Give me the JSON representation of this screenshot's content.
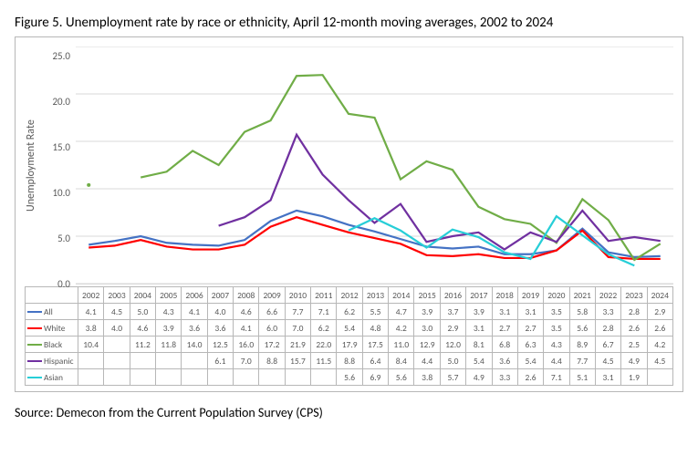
{
  "title": "Figure 5. Unemployment rate by race or ethnicity, April 12-month moving averages, 2002 to 2024",
  "source": "Source: Demecon from the Current Population Survey (CPS)",
  "chart": {
    "type": "line",
    "ylabel": "Unemployment Rate",
    "ylim": [
      0,
      25
    ],
    "yticks": [
      0.0,
      5.0,
      10.0,
      15.0,
      20.0,
      25.0
    ],
    "ytick_labels": [
      "0.0",
      "5.0",
      "10.0",
      "15.0",
      "20.0",
      "25.0"
    ],
    "years": [
      "2002",
      "2003",
      "2004",
      "2005",
      "2006",
      "2007",
      "2008",
      "2009",
      "2010",
      "2011",
      "2012",
      "2013",
      "2014",
      "2015",
      "2016",
      "2017",
      "2018",
      "2019",
      "2020",
      "2021",
      "2022",
      "2023",
      "2024"
    ],
    "grid_color": "#d9d9d9",
    "border_color": "#b7b7b7",
    "background_color": "#ffffff",
    "axis_text_color": "#595959",
    "line_width": 2.2,
    "series": [
      {
        "name": "All",
        "color": "#4472c4",
        "data": [
          4.1,
          4.5,
          5.0,
          4.3,
          4.1,
          4.0,
          4.6,
          6.6,
          7.7,
          7.1,
          6.2,
          5.5,
          4.7,
          3.9,
          3.7,
          3.9,
          3.1,
          3.1,
          3.5,
          5.8,
          3.3,
          2.8,
          2.9
        ]
      },
      {
        "name": "White",
        "color": "#ff0000",
        "data": [
          3.8,
          4.0,
          4.6,
          3.9,
          3.6,
          3.6,
          4.1,
          6.0,
          7.0,
          6.2,
          5.4,
          4.8,
          4.2,
          3.0,
          2.9,
          3.1,
          2.7,
          2.7,
          3.5,
          5.6,
          2.8,
          2.6,
          2.6
        ]
      },
      {
        "name": "Black",
        "color": "#70ad47",
        "data": [
          10.4,
          null,
          11.2,
          11.8,
          14.0,
          12.5,
          16.0,
          17.2,
          21.9,
          22.0,
          17.9,
          17.5,
          11.0,
          12.9,
          12.0,
          8.1,
          6.8,
          6.3,
          4.3,
          8.9,
          6.7,
          2.5,
          4.2
        ]
      },
      {
        "name": "Hispanic",
        "color": "#7030a0",
        "data": [
          null,
          null,
          null,
          null,
          null,
          6.1,
          7.0,
          8.8,
          15.7,
          11.5,
          8.8,
          6.4,
          8.4,
          4.4,
          5.0,
          5.4,
          3.6,
          5.4,
          4.4,
          7.7,
          4.5,
          4.9,
          4.5
        ]
      },
      {
        "name": "Asian",
        "color": "#27ced7",
        "data": [
          null,
          null,
          null,
          null,
          null,
          null,
          null,
          null,
          null,
          null,
          5.6,
          6.9,
          5.6,
          3.8,
          5.7,
          4.9,
          3.3,
          2.6,
          7.1,
          5.1,
          3.1,
          1.9,
          null
        ]
      }
    ]
  }
}
